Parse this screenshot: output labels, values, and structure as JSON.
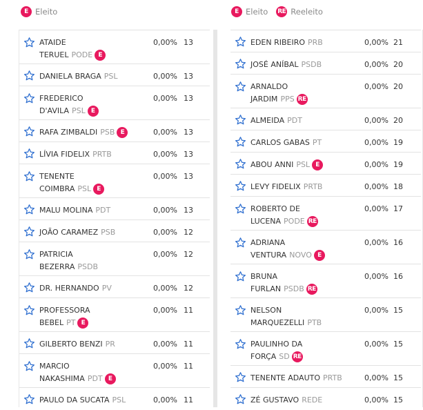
{
  "legend_left": {
    "items": [
      {
        "badge": "E",
        "label": "Eleito"
      }
    ]
  },
  "legend_right": {
    "items": [
      {
        "badge": "E",
        "label": "Eleito"
      },
      {
        "badge": "RE",
        "label": "Reeleito"
      }
    ]
  },
  "columns": [
    {
      "rows": [
        {
          "name_lines": [
            "ATAIDE",
            "TERUEL"
          ],
          "party": "PODE",
          "badge": "E",
          "pct": "0,00%",
          "votes": 13
        },
        {
          "name_lines": [
            "DANIELA BRAGA"
          ],
          "party": "PSL",
          "pct": "0,00%",
          "votes": 13
        },
        {
          "name_lines": [
            "FREDERICO",
            "D'AVILA"
          ],
          "party": "PSL",
          "badge": "E",
          "pct": "0,00%",
          "votes": 13
        },
        {
          "name_lines": [
            "RAFA ZIMBALDI"
          ],
          "party": "PSB",
          "badge": "E",
          "pct": "0,00%",
          "votes": 13
        },
        {
          "name_lines": [
            "LÍVIA FIDELIX"
          ],
          "party": "PRTB",
          "pct": "0,00%",
          "votes": 13
        },
        {
          "name_lines": [
            "TENENTE",
            "COIMBRA"
          ],
          "party": "PSL",
          "badge": "E",
          "pct": "0,00%",
          "votes": 13
        },
        {
          "name_lines": [
            "MALU MOLINA"
          ],
          "party": "PDT",
          "pct": "0,00%",
          "votes": 13
        },
        {
          "name_lines": [
            "JOÃO CARAMEZ"
          ],
          "party": "PSB",
          "pct": "0,00%",
          "votes": 12
        },
        {
          "name_lines": [
            "PATRICIA",
            "BEZERRA"
          ],
          "party": "PSDB",
          "pct": "0,00%",
          "votes": 12
        },
        {
          "name_lines": [
            "DR. HERNANDO"
          ],
          "party": "PV",
          "pct": "0,00%",
          "votes": 12
        },
        {
          "name_lines": [
            "PROFESSORA",
            "BEBEL"
          ],
          "party": "PT",
          "badge": "E",
          "pct": "0,00%",
          "votes": 11
        },
        {
          "name_lines": [
            "GILBERTO BENZI"
          ],
          "party": "PR",
          "pct": "0,00%",
          "votes": 11
        },
        {
          "name_lines": [
            "MARCIO",
            "NAKASHIMA"
          ],
          "party": "PDT",
          "badge": "E",
          "pct": "0,00%",
          "votes": 11
        },
        {
          "name_lines": [
            "PAULO DA SUCATA"
          ],
          "party": "PSL",
          "pct": "0,00%",
          "votes": 11
        }
      ]
    },
    {
      "rows": [
        {
          "name_lines": [
            "EDEN RIBEIRO"
          ],
          "party": "PRB",
          "pct": "0,00%",
          "votes": 21
        },
        {
          "name_lines": [
            "JOSÉ ANÍBAL"
          ],
          "party": "PSDB",
          "pct": "0,00%",
          "votes": 20
        },
        {
          "name_lines": [
            "ARNALDO",
            "JARDIM"
          ],
          "party": "PPS",
          "badge": "RE",
          "pct": "0,00%",
          "votes": 20
        },
        {
          "name_lines": [
            "ALMEIDA"
          ],
          "party": "PDT",
          "pct": "0,00%",
          "votes": 20
        },
        {
          "name_lines": [
            "CARLOS GABAS"
          ],
          "party": "PT",
          "pct": "0,00%",
          "votes": 19
        },
        {
          "name_lines": [
            "ABOU ANNI"
          ],
          "party": "PSL",
          "badge": "E",
          "pct": "0,00%",
          "votes": 19
        },
        {
          "name_lines": [
            "LEVY FIDELIX"
          ],
          "party": "PRTB",
          "pct": "0,00%",
          "votes": 18
        },
        {
          "name_lines": [
            "ROBERTO DE",
            "LUCENA"
          ],
          "party": "PODE",
          "badge": "RE",
          "pct": "0,00%",
          "votes": 17
        },
        {
          "name_lines": [
            "ADRIANA",
            "VENTURA"
          ],
          "party": "NOVO",
          "badge": "E",
          "pct": "0,00%",
          "votes": 16
        },
        {
          "name_lines": [
            "BRUNA",
            "FURLAN"
          ],
          "party": "PSDB",
          "badge": "RE",
          "pct": "0,00%",
          "votes": 16
        },
        {
          "name_lines": [
            "NELSON",
            "MARQUEZELLI"
          ],
          "party": "PTB",
          "pct": "0,00%",
          "votes": 15
        },
        {
          "name_lines": [
            "PAULINHO DA",
            "FORÇA"
          ],
          "party": "SD",
          "badge": "RE",
          "pct": "0,00%",
          "votes": 15
        },
        {
          "name_lines": [
            "TENENTE ADAUTO"
          ],
          "party": "PRTB",
          "pct": "0,00%",
          "votes": 15
        },
        {
          "name_lines": [
            "ZÉ GUSTAVO"
          ],
          "party": "REDE",
          "pct": "0,00%",
          "votes": 15
        }
      ]
    }
  ]
}
